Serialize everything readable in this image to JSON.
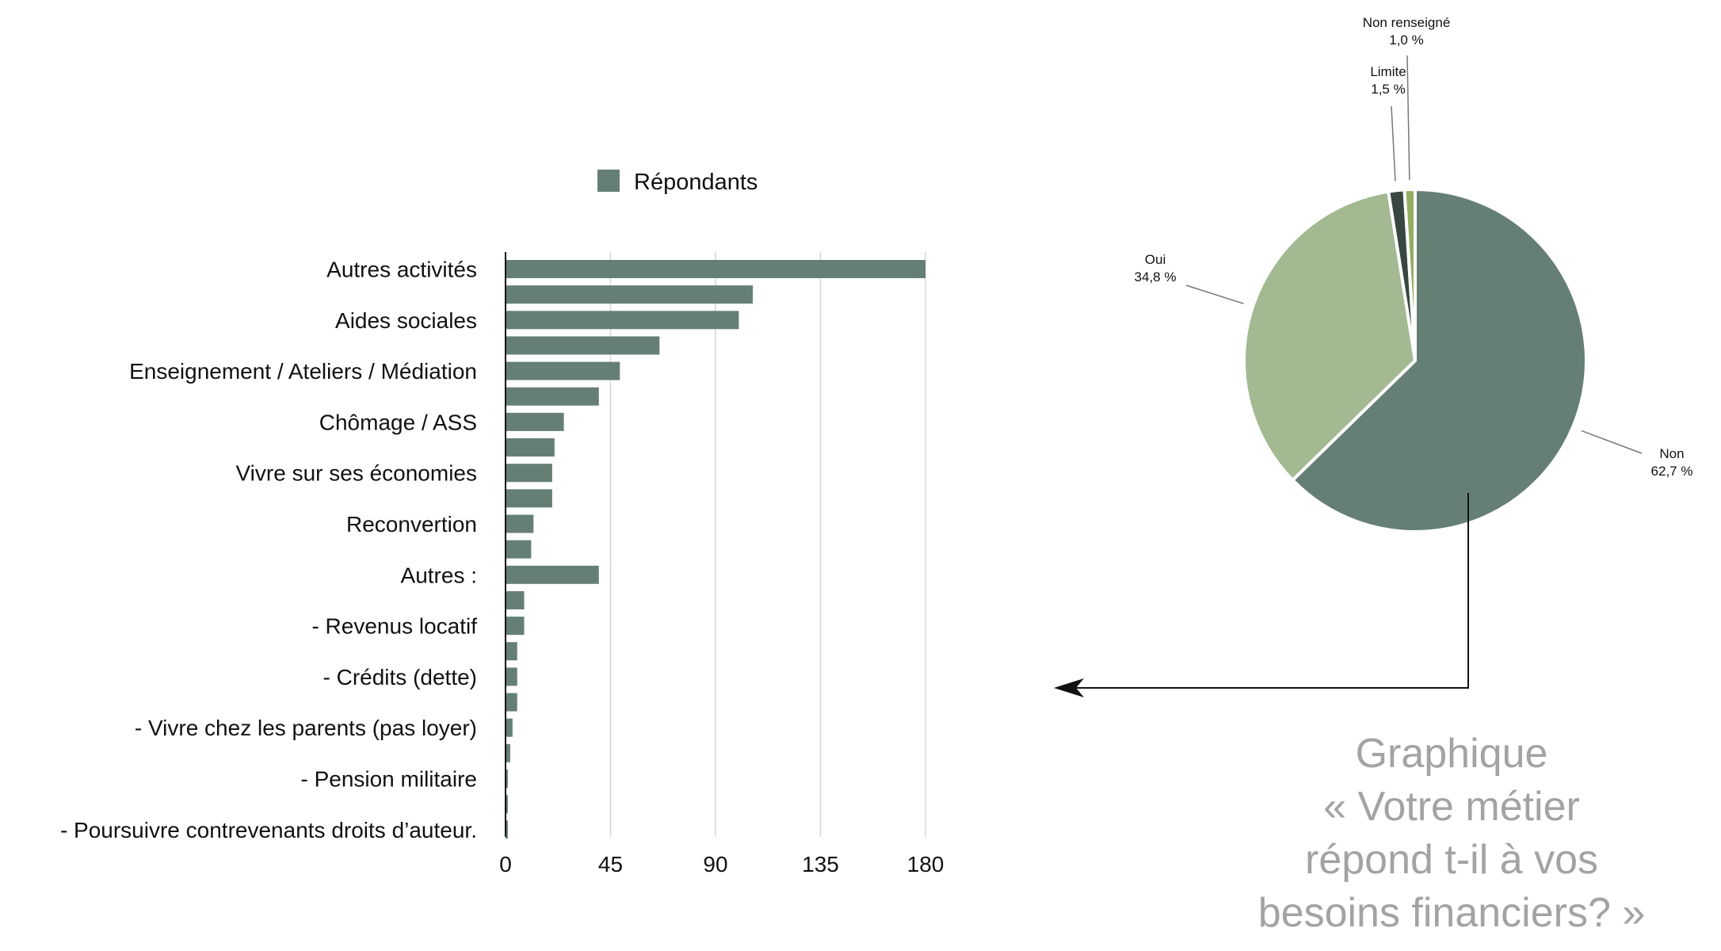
{
  "chart_data": [
    {
      "type": "bar",
      "orientation": "horizontal",
      "legend": {
        "label": "Répondants",
        "placement": "top"
      },
      "color": "#667f75",
      "xlim": [
        0,
        180
      ],
      "x_ticks": [
        "0",
        "45",
        "90",
        "135",
        "180"
      ],
      "grid": true,
      "categories": [
        "Autres activités",
        "",
        "Aides sociales",
        "",
        "Enseignement / Ateliers / Médiation",
        "",
        "Chômage / ASS",
        "",
        "Vivre sur ses économies",
        "",
        "Reconvertion",
        "",
        "Autres :",
        "",
        "- Revenus locatif",
        "",
        "- Crédits (dette)",
        "",
        "- Vivre chez les parents (pas loyer)",
        "",
        "- Pension militaire",
        "",
        "- Poursuivre contrevenants droits d’auteur."
      ],
      "values": [
        180,
        106,
        100,
        66,
        49,
        40,
        25,
        21,
        20,
        20,
        12,
        11,
        40,
        8,
        8,
        5,
        5,
        5,
        3,
        2,
        1,
        1,
        1
      ]
    },
    {
      "type": "pie",
      "slices": [
        {
          "label": "Non",
          "value_text": "62,7 %",
          "value": 62.7,
          "color": "#667f75"
        },
        {
          "label": "Oui",
          "value_text": "34,8 %",
          "value": 34.8,
          "color": "#a3b991"
        },
        {
          "label": "Limite",
          "value_text": "1,5 %",
          "value": 1.5,
          "color": "#384840"
        },
        {
          "label": "Non renseigné",
          "value_text": "1,0 %",
          "value": 1.0,
          "color": "#94ae62"
        }
      ]
    }
  ],
  "caption": {
    "lines": [
      "Graphique",
      "« Votre métier",
      "répond t-il à vos",
      "besoins financiers? »"
    ]
  }
}
